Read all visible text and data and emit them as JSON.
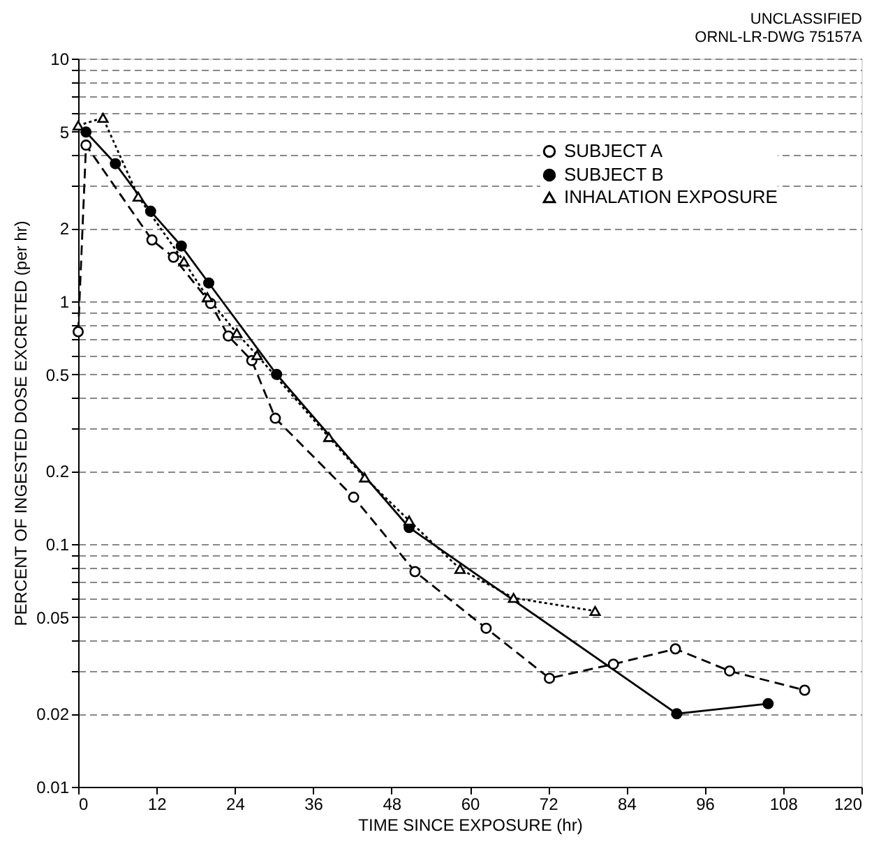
{
  "chart_data": {
    "type": "line",
    "xlabel": "TIME SINCE EXPOSURE (hr)",
    "ylabel": "PERCENT OF INGESTED DOSE EXCRETED (per hr)",
    "annotations": [
      "UNCLASSIFIED",
      "ORNL-LR-DWG 75157A"
    ],
    "log": "y",
    "xlim": [
      0,
      120
    ],
    "xticks": [
      0,
      12,
      24,
      36,
      48,
      60,
      72,
      84,
      96,
      108,
      120
    ],
    "ylim": [
      0.01,
      10
    ],
    "yticks": [
      0.01,
      0.02,
      {
        "value": 0.03,
        "label": null
      },
      {
        "value": 0.04,
        "label": null
      },
      0.05,
      {
        "value": 0.06,
        "label": null
      },
      {
        "value": 0.07,
        "label": null
      },
      {
        "value": 0.08,
        "label": null
      },
      {
        "value": 0.09,
        "label": null
      },
      0.1,
      0.2,
      {
        "value": 0.3,
        "label": null
      },
      {
        "value": 0.4,
        "label": null
      },
      0.5,
      {
        "value": 0.6,
        "label": null
      },
      {
        "value": 0.7,
        "label": null
      },
      {
        "value": 0.8,
        "label": null
      },
      {
        "value": 0.9,
        "label": null
      },
      1,
      2,
      {
        "value": 3,
        "label": null
      },
      {
        "value": 4,
        "label": null
      },
      5,
      {
        "value": 6,
        "label": null
      },
      {
        "value": 7,
        "label": null
      },
      {
        "value": 8,
        "label": null
      },
      {
        "value": 9,
        "label": null
      },
      10
    ],
    "grid": "y",
    "legend": "top right",
    "series": [
      {
        "name": "SUBJECT A",
        "color": "#000000",
        "marker": "circle",
        "line_style": "dashed",
        "x": [
          0,
          1.2,
          11.3,
          14.6,
          20.3,
          23,
          26.6,
          30.2,
          42.2,
          51.6,
          62.5,
          72.2,
          82,
          91.5,
          99.8,
          111.3
        ],
        "values": [
          0.75,
          4.4,
          1.79,
          1.52,
          0.98,
          0.72,
          0.57,
          0.33,
          0.156,
          0.077,
          0.045,
          0.028,
          0.032,
          0.037,
          0.03,
          0.025
        ]
      },
      {
        "name": "SUBJECT B",
        "color": "#000000",
        "marker": "circle",
        "line_style": "solid",
        "x": [
          1.2,
          5.7,
          11.1,
          15.8,
          20,
          30.4,
          50.7,
          91.7,
          105.7
        ],
        "values": [
          4.98,
          3.69,
          2.35,
          1.69,
          1.19,
          0.5,
          0.117,
          0.02,
          0.022
        ]
      },
      {
        "name": "INHALATION EXPOSURE",
        "color": "#000000",
        "marker": "triangle",
        "line_style": "dotted",
        "x": [
          0,
          3.8,
          9.2,
          16.2,
          19.8,
          24.3,
          27.4,
          38.4,
          43.9,
          50.7,
          58.5,
          66.7,
          79.2
        ],
        "values": [
          5.3,
          5.7,
          2.7,
          1.46,
          1.04,
          0.74,
          0.6,
          0.276,
          0.188,
          0.125,
          0.079,
          0.06,
          0.053
        ]
      }
    ]
  }
}
